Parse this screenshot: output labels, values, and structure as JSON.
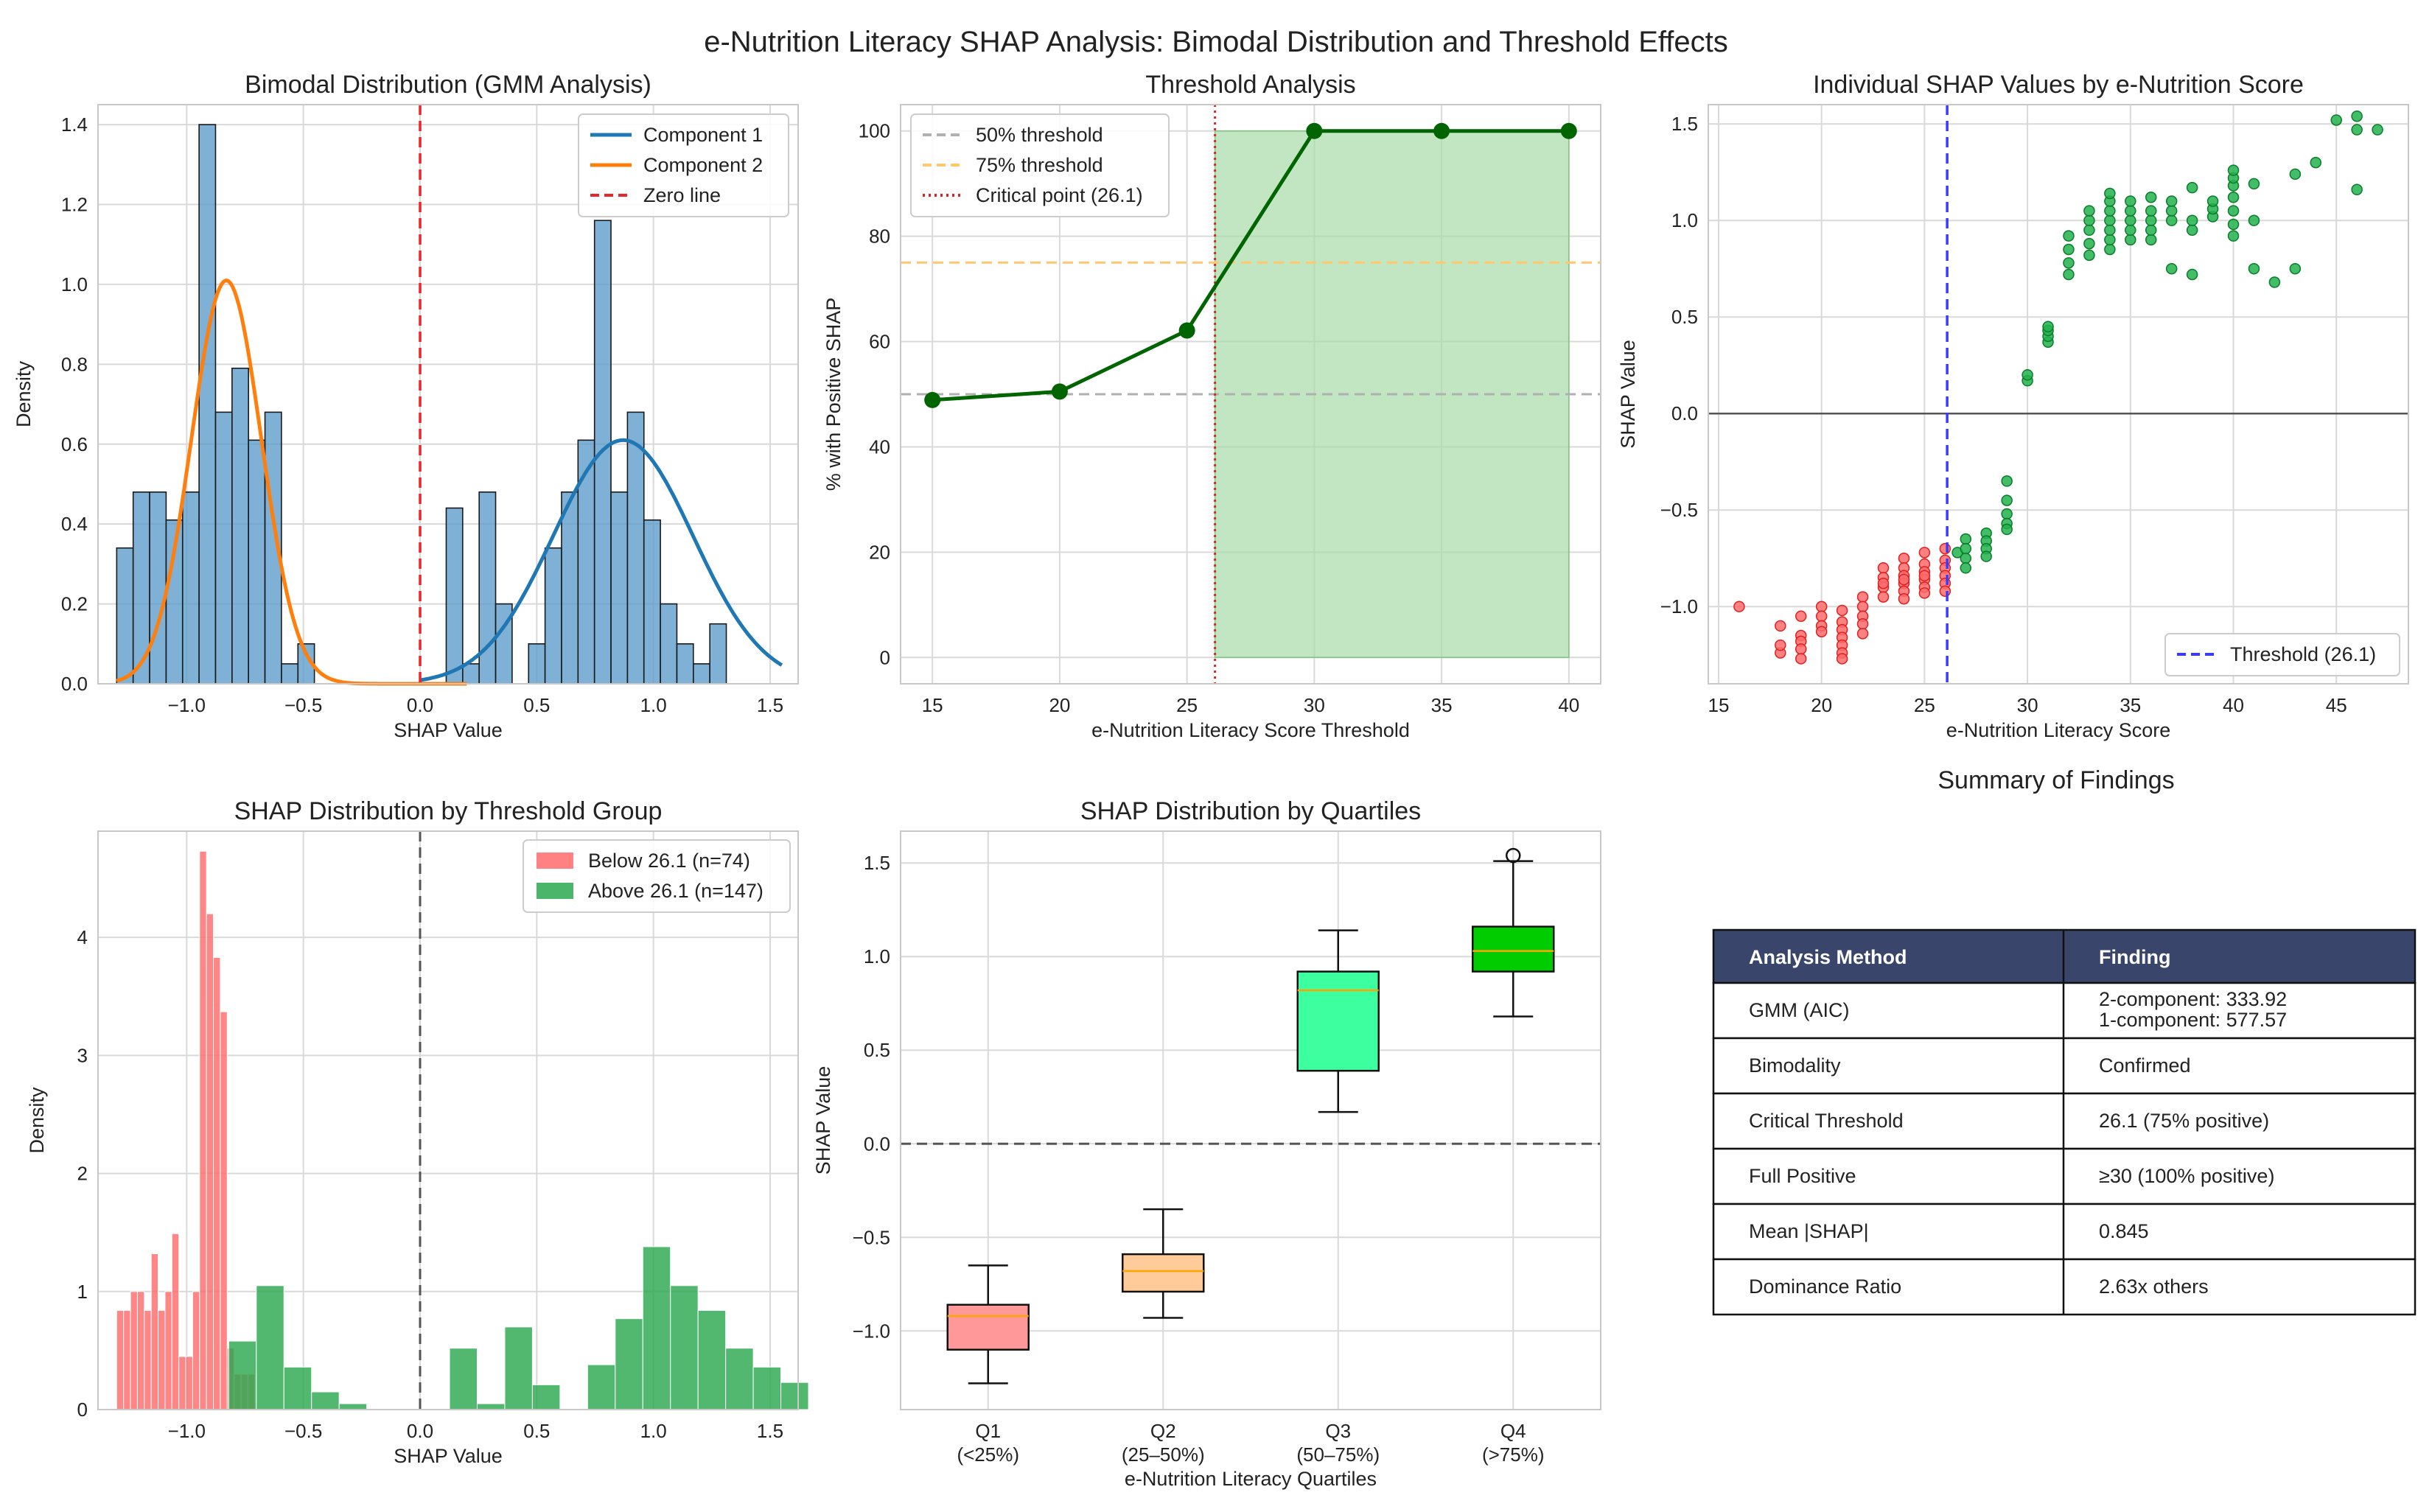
{
  "suptitle": "e-Nutrition Literacy SHAP Analysis: Bimodal Distribution and Threshold Effects",
  "colors": {
    "hist_blue": "#5a9bc9",
    "comp1": "#1f77b4",
    "comp2": "#ff7f0e",
    "zero_line": "#e8262b",
    "line_green": "#006400",
    "fill_green": "#a8dba8",
    "gray_dash": "#b0b0b0",
    "orange_dash": "#ffc870",
    "crit_red": "#d62728",
    "below_red": "#ff6b6b",
    "above_green": "#2ca850",
    "thr_blue": "#3b3bff",
    "table_header": "#39456b",
    "q1": "#ff9999",
    "q2": "#ffcc99",
    "q3": "#3dffa0",
    "q4": "#00cc00",
    "median": "#ffa500"
  },
  "chart_data": [
    {
      "id": "p1",
      "type": "bar",
      "title": "Bimodal Distribution (GMM Analysis)",
      "xlabel": "SHAP Value",
      "ylabel": "Density",
      "xlim": [
        -1.38,
        1.62
      ],
      "ylim": [
        0,
        1.45
      ],
      "xticks": [
        -1.0,
        -0.5,
        0.0,
        0.5,
        1.0,
        1.5
      ],
      "xtick_labels": [
        "−1.0",
        "−0.5",
        "0.0",
        "0.5",
        "1.0",
        "1.5"
      ],
      "yticks": [
        0,
        0.2,
        0.4,
        0.6,
        0.8,
        1.0,
        1.2,
        1.4
      ],
      "ytick_labels": [
        "0.0",
        "0.2",
        "0.4",
        "0.6",
        "0.8",
        "1.0",
        "1.2",
        "1.4"
      ],
      "bin_start": -1.3,
      "bin_width": 0.0706,
      "histogram": [
        0.34,
        0.48,
        0.48,
        0.41,
        0.48,
        1.4,
        0.68,
        0.79,
        0.61,
        0.68,
        0.05,
        0.1,
        0,
        0,
        0,
        0,
        0,
        0,
        0,
        0,
        0.44,
        0.05,
        0.48,
        0.2,
        0,
        0.1,
        0.34,
        0.48,
        0.61,
        1.16,
        0.48,
        0.68,
        0.41,
        0.2,
        0.1,
        0.05,
        0.15
      ],
      "series": [
        {
          "name": "Component 1",
          "mean": 0.87,
          "sd": 0.3,
          "peak": 0.61,
          "x_range": [
            0.0,
            1.55
          ]
        },
        {
          "name": "Component 2",
          "mean": -0.83,
          "sd": 0.15,
          "peak": 1.01,
          "x_range": [
            -1.3,
            0.2
          ]
        }
      ],
      "vline": {
        "x": 0.0,
        "name": "Zero line"
      },
      "legend": [
        "Component 1",
        "Component 2",
        "Zero line"
      ],
      "legend_loc": "top-right"
    },
    {
      "id": "p2",
      "type": "line",
      "title": "Threshold Analysis",
      "xlabel": "e-Nutrition Literacy Score Threshold",
      "ylabel": "% with Positive SHAP",
      "xlim": [
        13.75,
        41.25
      ],
      "ylim": [
        -5,
        105
      ],
      "xticks": [
        15,
        20,
        25,
        30,
        35,
        40
      ],
      "yticks": [
        0,
        20,
        40,
        60,
        80,
        100
      ],
      "x": [
        15,
        20,
        25,
        30,
        35,
        40
      ],
      "values": [
        48.9,
        50.5,
        62.1,
        100,
        100,
        100
      ],
      "hlines": [
        {
          "y": 50,
          "name": "50% threshold"
        },
        {
          "y": 75,
          "name": "75% threshold"
        }
      ],
      "vline": {
        "x": 26.1,
        "name": "Critical point (26.1)"
      },
      "shade": {
        "x_from": 26.1,
        "x_to": 40,
        "y_from": 0,
        "y_to": 100
      },
      "legend": [
        "50% threshold",
        "75% threshold",
        "Critical point (26.1)"
      ],
      "legend_loc": "top-left"
    },
    {
      "id": "p3",
      "type": "scatter",
      "title": "Individual SHAP Values by e-Nutrition Score",
      "xlabel": "e-Nutrition Literacy Score",
      "ylabel": "SHAP Value",
      "xlim": [
        14.5,
        48.5
      ],
      "ylim": [
        -1.4,
        1.6
      ],
      "xticks": [
        15,
        20,
        25,
        30,
        35,
        40,
        45
      ],
      "yticks": [
        -1.0,
        -0.5,
        0.0,
        0.5,
        1.0,
        1.5
      ],
      "ytick_labels": [
        "−1.0",
        "−0.5",
        "0.0",
        "0.5",
        "1.0",
        "1.5"
      ],
      "threshold": {
        "x": 26.1,
        "name": "Threshold (26.1)"
      },
      "below_points": [
        [
          16,
          -1.0
        ],
        [
          18,
          -1.24
        ],
        [
          18,
          -1.2
        ],
        [
          18,
          -1.1
        ],
        [
          19,
          -1.05
        ],
        [
          19,
          -1.15
        ],
        [
          19,
          -1.18
        ],
        [
          19,
          -1.22
        ],
        [
          19,
          -1.27
        ],
        [
          20,
          -1.0
        ],
        [
          20,
          -1.05
        ],
        [
          20,
          -1.1
        ],
        [
          21,
          -1.02
        ],
        [
          21,
          -1.08
        ],
        [
          21,
          -1.12
        ],
        [
          21,
          -1.16
        ],
        [
          21,
          -1.2
        ],
        [
          21,
          -1.24
        ],
        [
          21,
          -1.27
        ],
        [
          22,
          -0.95
        ],
        [
          22,
          -1.0
        ],
        [
          22,
          -1.05
        ],
        [
          22,
          -1.09
        ],
        [
          23,
          -0.8
        ],
        [
          23,
          -0.85
        ],
        [
          23,
          -0.9
        ],
        [
          23,
          -0.95
        ],
        [
          24,
          -0.75
        ],
        [
          24,
          -0.8
        ],
        [
          24,
          -0.84
        ],
        [
          24,
          -0.88
        ],
        [
          24,
          -0.92
        ],
        [
          24,
          -0.96
        ],
        [
          25,
          -0.72
        ],
        [
          25,
          -0.78
        ],
        [
          25,
          -0.82
        ],
        [
          25,
          -0.86
        ],
        [
          25,
          -0.9
        ],
        [
          25,
          -0.93
        ],
        [
          26,
          -0.7
        ],
        [
          26,
          -0.76
        ],
        [
          26,
          -0.8
        ],
        [
          26,
          -0.84
        ],
        [
          26,
          -0.88
        ],
        [
          26,
          -0.92
        ],
        [
          20,
          -1.13
        ],
        [
          22,
          -1.14
        ],
        [
          23,
          -0.88
        ],
        [
          24,
          -0.86
        ],
        [
          25,
          -0.84
        ]
      ],
      "above_points": [
        [
          26.6,
          -0.72
        ],
        [
          27,
          -0.65
        ],
        [
          27,
          -0.7
        ],
        [
          27,
          -0.75
        ],
        [
          27,
          -0.8
        ],
        [
          28,
          -0.62
        ],
        [
          28,
          -0.66
        ],
        [
          28,
          -0.7
        ],
        [
          28,
          -0.74
        ],
        [
          29,
          -0.35
        ],
        [
          29,
          -0.45
        ],
        [
          29,
          -0.52
        ],
        [
          29,
          -0.57
        ],
        [
          29,
          -0.6
        ],
        [
          30,
          0.17
        ],
        [
          30,
          0.2
        ],
        [
          31,
          0.37
        ],
        [
          31,
          0.4
        ],
        [
          31,
          0.43
        ],
        [
          31,
          0.45
        ],
        [
          32,
          0.72
        ],
        [
          32,
          0.78
        ],
        [
          32,
          0.85
        ],
        [
          32,
          0.92
        ],
        [
          33,
          0.82
        ],
        [
          33,
          0.88
        ],
        [
          33,
          0.95
        ],
        [
          33,
          1.0
        ],
        [
          33,
          1.05
        ],
        [
          34,
          0.85
        ],
        [
          34,
          0.9
        ],
        [
          34,
          0.95
        ],
        [
          34,
          1.0
        ],
        [
          34,
          1.05
        ],
        [
          34,
          1.1
        ],
        [
          34,
          1.14
        ],
        [
          35,
          0.9
        ],
        [
          35,
          0.95
        ],
        [
          35,
          1.0
        ],
        [
          35,
          1.05
        ],
        [
          35,
          1.1
        ],
        [
          36,
          0.9
        ],
        [
          36,
          0.95
        ],
        [
          36,
          1.0
        ],
        [
          36,
          1.05
        ],
        [
          36,
          1.12
        ],
        [
          37,
          0.75
        ],
        [
          37,
          1.0
        ],
        [
          37,
          1.05
        ],
        [
          37,
          1.1
        ],
        [
          38,
          0.72
        ],
        [
          38,
          0.95
        ],
        [
          38,
          1.0
        ],
        [
          38,
          1.17
        ],
        [
          39,
          1.02
        ],
        [
          39,
          1.06
        ],
        [
          39,
          1.1
        ],
        [
          40,
          0.92
        ],
        [
          40,
          0.98
        ],
        [
          40,
          1.05
        ],
        [
          40,
          1.12
        ],
        [
          40,
          1.18
        ],
        [
          40,
          1.22
        ],
        [
          40,
          1.26
        ],
        [
          41,
          0.75
        ],
        [
          41,
          1.0
        ],
        [
          41,
          1.19
        ],
        [
          42,
          0.68
        ],
        [
          43,
          0.75
        ],
        [
          43,
          1.24
        ],
        [
          44,
          1.3
        ],
        [
          45,
          1.52
        ],
        [
          46,
          1.16
        ],
        [
          46,
          1.54
        ],
        [
          46,
          1.47
        ],
        [
          47,
          1.47
        ]
      ]
    },
    {
      "id": "p4",
      "type": "bar",
      "title": "SHAP Distribution by Threshold Group",
      "xlabel": "SHAP Value",
      "ylabel": "Density",
      "xlim": [
        -1.38,
        1.62
      ],
      "ylim": [
        0,
        4.9
      ],
      "xticks": [
        -1.0,
        -0.5,
        0.0,
        0.5,
        1.0,
        1.5
      ],
      "xtick_labels": [
        "−1.0",
        "−0.5",
        "0.0",
        "0.5",
        "1.0",
        "1.5"
      ],
      "yticks": [
        0,
        1,
        2,
        3,
        4
      ],
      "series": [
        {
          "name": "Below 26.1 (n=74)",
          "bin_start": -1.3,
          "bin_width": 0.0296,
          "values": [
            0.84,
            0.84,
            1.0,
            1.0,
            0.84,
            1.32,
            0.84,
            1.0,
            1.49,
            0.45,
            0.45,
            1.0,
            4.73,
            4.2,
            3.83,
            3.37,
            0.52,
            0.3,
            0.3,
            0.3
          ]
        },
        {
          "name": "Above 26.1 (n=147)",
          "bin_start": -0.82,
          "bin_width": 0.1183,
          "values": [
            0.58,
            1.05,
            0.36,
            0.15,
            0.05,
            0,
            0,
            0,
            0.52,
            0.05,
            0.7,
            0.21,
            0,
            0.38,
            0.77,
            1.38,
            1.05,
            0.84,
            0.52,
            0.36,
            0.23
          ]
        }
      ],
      "vline": {
        "x": 0.0
      },
      "legend_loc": "top-right"
    },
    {
      "id": "p5",
      "type": "box",
      "title": "SHAP Distribution by Quartiles",
      "xlabel": "e-Nutrition Literacy Quartiles",
      "ylabel": "SHAP Value",
      "ylim": [
        -1.42,
        1.67
      ],
      "yticks": [
        -1.0,
        -0.5,
        0.0,
        0.5,
        1.0,
        1.5
      ],
      "ytick_labels": [
        "−1.0",
        "−0.5",
        "0.0",
        "0.5",
        "1.0",
        "1.5"
      ],
      "categories": [
        "Q1",
        "Q2",
        "Q3",
        "Q4"
      ],
      "category_sublabels": [
        "(<25%)",
        "(25–50%)",
        "(50–75%)",
        "(>75%)"
      ],
      "boxes": [
        {
          "whisker_low": -1.28,
          "q1": -1.1,
          "median": -0.92,
          "q3": -0.86,
          "whisker_high": -0.65,
          "outliers": []
        },
        {
          "whisker_low": -0.93,
          "q1": -0.79,
          "median": -0.68,
          "q3": -0.59,
          "whisker_high": -0.35,
          "outliers": []
        },
        {
          "whisker_low": 0.17,
          "q1": 0.39,
          "median": 0.82,
          "q3": 0.92,
          "whisker_high": 1.14,
          "outliers": []
        },
        {
          "whisker_low": 0.68,
          "q1": 0.92,
          "median": 1.03,
          "q3": 1.16,
          "whisker_high": 1.51,
          "outliers": [
            1.54
          ]
        }
      ],
      "hline": {
        "y": 0.0
      }
    }
  ],
  "table": {
    "title": "Summary of Findings",
    "headers": [
      "Analysis Method",
      "Finding"
    ],
    "rows": [
      [
        "GMM (AIC)",
        "2-component: 333.92\n1-component: 577.57"
      ],
      [
        "Bimodality",
        "Confirmed"
      ],
      [
        "Critical Threshold",
        "26.1 (75% positive)"
      ],
      [
        "Full Positive",
        "≥30 (100% positive)"
      ],
      [
        "Mean |SHAP|",
        "0.845"
      ],
      [
        "Dominance Ratio",
        "2.63x others"
      ]
    ]
  }
}
